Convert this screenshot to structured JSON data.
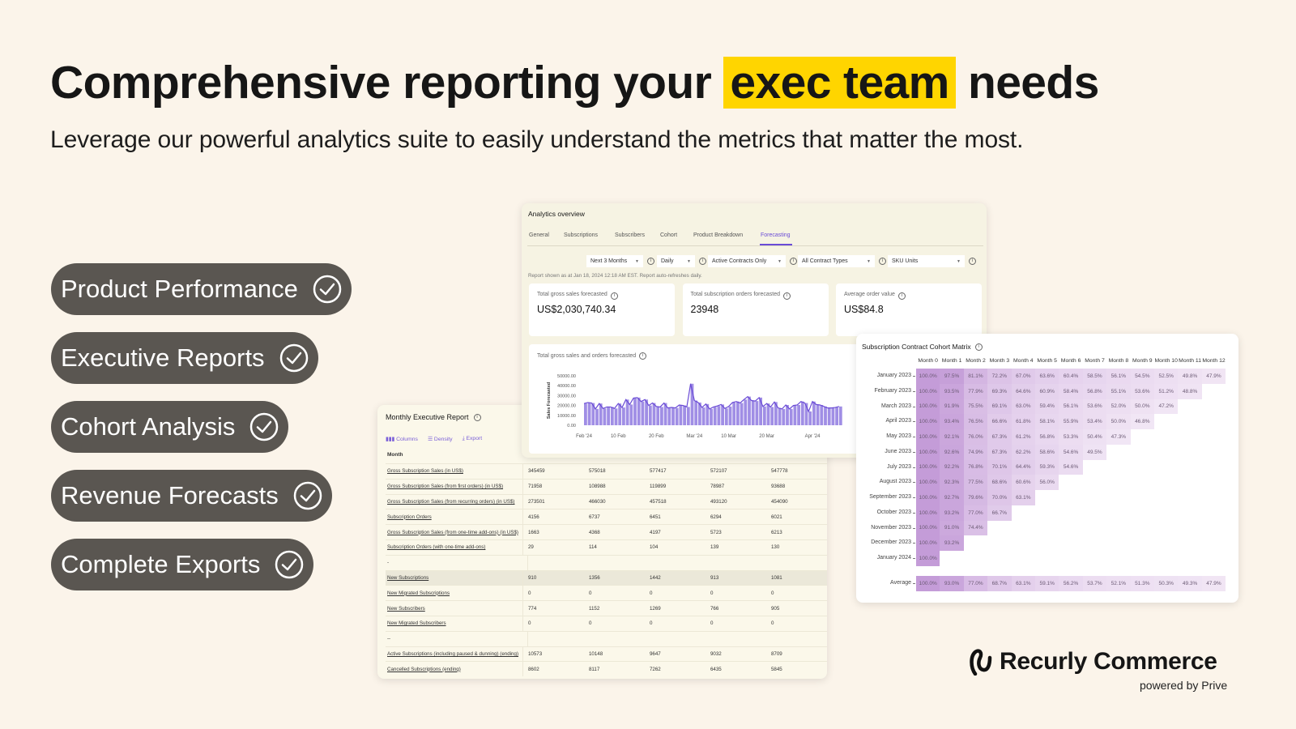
{
  "headline": {
    "before": "Comprehensive reporting your ",
    "highlight": "exec team",
    "after": " needs",
    "highlight_color": "#ffd500"
  },
  "subtitle": "Leverage our powerful analytics suite to easily understand the metrics that matter the most.",
  "features": [
    {
      "label": "Product Performance",
      "icon": "check-circle-icon"
    },
    {
      "label": "Executive Reports",
      "icon": "check-circle-icon"
    },
    {
      "label": "Cohort Analysis",
      "icon": "check-circle-icon"
    },
    {
      "label": "Revenue Forecasts",
      "icon": "check-circle-icon"
    },
    {
      "label": "Complete Exports",
      "icon": "check-circle-icon"
    }
  ],
  "analytics": {
    "title": "Analytics overview",
    "tabs": [
      "General",
      "Subscriptions",
      "Subscribers",
      "Cohort",
      "Product Breakdown",
      "Forecasting"
    ],
    "active_tab": "Forecasting",
    "filters": [
      "Next 3 Months",
      "Daily",
      "Active Contracts Only",
      "All Contract Types",
      "SKU Units"
    ],
    "note": "Report shown as at Jan 18, 2024 12:18 AM EST. Report auto-refreshes daily.",
    "cards": [
      {
        "label": "Total gross sales forecasted",
        "value": "US$2,030,740.34"
      },
      {
        "label": "Total subscription orders forecasted",
        "value": "23948"
      },
      {
        "label": "Average order value",
        "value": "US$84.8"
      }
    ],
    "accent": "#6a4bd6"
  },
  "chart_data": {
    "type": "area",
    "title": "Total gross sales and orders forecasted",
    "ylabel": "Sales Forecasted",
    "ylim": [
      0,
      50000
    ],
    "yticks": [
      "0.00",
      "10000.00",
      "20000.00",
      "30000.00",
      "40000.00",
      "50000.00"
    ],
    "xticks": [
      "Feb '24",
      "10 Feb",
      "20 Feb",
      "Mar '24",
      "10 Mar",
      "20 Mar",
      "Apr '24"
    ],
    "x_start": "2024-02-01",
    "x_interval": "daily",
    "values": [
      22000,
      23000,
      22500,
      16500,
      22000,
      17000,
      18500,
      18500,
      17000,
      22000,
      18000,
      26000,
      21000,
      27500,
      28000,
      24000,
      26000,
      20000,
      22500,
      19000,
      18500,
      22500,
      17500,
      18000,
      17500,
      20500,
      20000,
      18500,
      42000,
      25000,
      23000,
      18000,
      21500,
      16500,
      18500,
      19500,
      21000,
      17000,
      19000,
      23000,
      24000,
      22500,
      26000,
      29000,
      25000,
      24500,
      28000,
      19000,
      22000,
      18500,
      23500,
      17500,
      16500,
      20500,
      16500,
      20000,
      20500,
      24000,
      22500,
      14000,
      24000,
      21000,
      20500,
      19000,
      17500,
      17500,
      18000,
      19000
    ],
    "color": "#8f7ae0"
  },
  "exec": {
    "title": "Monthly Executive Report",
    "toolbar": [
      "Columns",
      "Density",
      "Export"
    ],
    "header": "Month",
    "rows": [
      {
        "label": "Gross Subscription Sales (in US$)",
        "values": [
          "345459",
          "575018",
          "577417",
          "572107",
          "547778"
        ]
      },
      {
        "label": "Gross Subscription Sales (from first orders) (in US$)",
        "values": [
          "71958",
          "108988",
          "119899",
          "78987",
          "93688"
        ]
      },
      {
        "label": "Gross Subscription Sales (from recurring orders) (in US$)",
        "values": [
          "273501",
          "466030",
          "457518",
          "493120",
          "454090"
        ]
      },
      {
        "label": "Subscription Orders",
        "values": [
          "4156",
          "6737",
          "6451",
          "6294",
          "6021"
        ]
      },
      {
        "label": "Gross Subscription Sales (from one-time add-ons) (in US$)",
        "values": [
          "1663",
          "4368",
          "4197",
          "5723",
          "6213"
        ]
      },
      {
        "label": "Subscription Orders (with one-time add-ons)",
        "values": [
          "29",
          "114",
          "104",
          "139",
          "130"
        ]
      },
      {
        "label": "-",
        "values": [],
        "plain": true
      },
      {
        "label": "New Subscriptions",
        "values": [
          "910",
          "1356",
          "1442",
          "913",
          "1081"
        ],
        "highlight": true
      },
      {
        "label": "New Migrated Subscriptions",
        "values": [
          "0",
          "0",
          "0",
          "0",
          "0"
        ]
      },
      {
        "label": "New Subscribers",
        "values": [
          "774",
          "1152",
          "1269",
          "766",
          "905"
        ]
      },
      {
        "label": "New Migrated Subscribers",
        "values": [
          "0",
          "0",
          "0",
          "0",
          "0"
        ]
      },
      {
        "label": "--",
        "values": [],
        "plain": true
      },
      {
        "label": "Active Subscriptions (including paused & dunning) (ending)",
        "values": [
          "10573",
          "10148",
          "9647",
          "9032",
          "8709"
        ]
      },
      {
        "label": "Cancelled Subscriptions (ending)",
        "values": [
          "8602",
          "8117",
          "7262",
          "6435",
          "5845"
        ]
      }
    ]
  },
  "cohort": {
    "title": "Subscription Contract Cohort Matrix",
    "columns": [
      "Month 0",
      "Month 1",
      "Month 2",
      "Month 3",
      "Month 4",
      "Month 5",
      "Month 6",
      "Month 7",
      "Month 8",
      "Month 9",
      "Month 10",
      "Month 11",
      "Month 12"
    ],
    "rows": [
      {
        "label": "January 2023",
        "values": [
          "100.0%",
          "97.5%",
          "81.1%",
          "72.2%",
          "67.0%",
          "63.6%",
          "60.4%",
          "58.5%",
          "56.1%",
          "54.5%",
          "52.5%",
          "49.8%",
          "47.9%"
        ]
      },
      {
        "label": "February 2023",
        "values": [
          "100.0%",
          "93.5%",
          "77.9%",
          "69.3%",
          "64.6%",
          "60.9%",
          "58.4%",
          "56.8%",
          "55.1%",
          "53.6%",
          "51.2%",
          "48.8%"
        ]
      },
      {
        "label": "March 2023",
        "values": [
          "100.0%",
          "91.9%",
          "75.5%",
          "69.1%",
          "63.0%",
          "59.4%",
          "56.1%",
          "53.6%",
          "52.0%",
          "50.0%",
          "47.2%"
        ]
      },
      {
        "label": "April 2023",
        "values": [
          "100.0%",
          "93.4%",
          "76.5%",
          "66.6%",
          "61.8%",
          "58.1%",
          "55.9%",
          "53.4%",
          "50.0%",
          "46.8%"
        ]
      },
      {
        "label": "May 2023",
        "values": [
          "100.0%",
          "92.1%",
          "76.0%",
          "67.3%",
          "61.2%",
          "56.8%",
          "53.3%",
          "50.4%",
          "47.3%"
        ]
      },
      {
        "label": "June 2023",
        "values": [
          "100.0%",
          "92.6%",
          "74.9%",
          "67.3%",
          "62.2%",
          "58.6%",
          "54.6%",
          "49.5%"
        ]
      },
      {
        "label": "July 2023",
        "values": [
          "100.0%",
          "92.2%",
          "76.8%",
          "70.1%",
          "64.4%",
          "59.3%",
          "54.6%"
        ]
      },
      {
        "label": "August 2023",
        "values": [
          "100.0%",
          "92.3%",
          "77.5%",
          "68.6%",
          "60.6%",
          "56.0%"
        ]
      },
      {
        "label": "September 2023",
        "values": [
          "100.0%",
          "92.7%",
          "79.6%",
          "70.0%",
          "63.1%"
        ]
      },
      {
        "label": "October 2023",
        "values": [
          "100.0%",
          "93.2%",
          "77.0%",
          "66.7%"
        ]
      },
      {
        "label": "November 2023",
        "values": [
          "100.0%",
          "91.0%",
          "74.4%"
        ]
      },
      {
        "label": "December 2023",
        "values": [
          "100.0%",
          "93.2%"
        ]
      },
      {
        "label": "January 2024",
        "values": [
          "100.0%"
        ]
      }
    ],
    "average": {
      "label": "Average",
      "values": [
        "100.0%",
        "93.0%",
        "77.0%",
        "68.7%",
        "63.1%",
        "59.1%",
        "56.2%",
        "53.7%",
        "52.1%",
        "51.3%",
        "50.3%",
        "49.3%",
        "47.9%"
      ]
    }
  },
  "brand": {
    "name": "Recurly Commerce",
    "tagline": "powered by Prive"
  }
}
